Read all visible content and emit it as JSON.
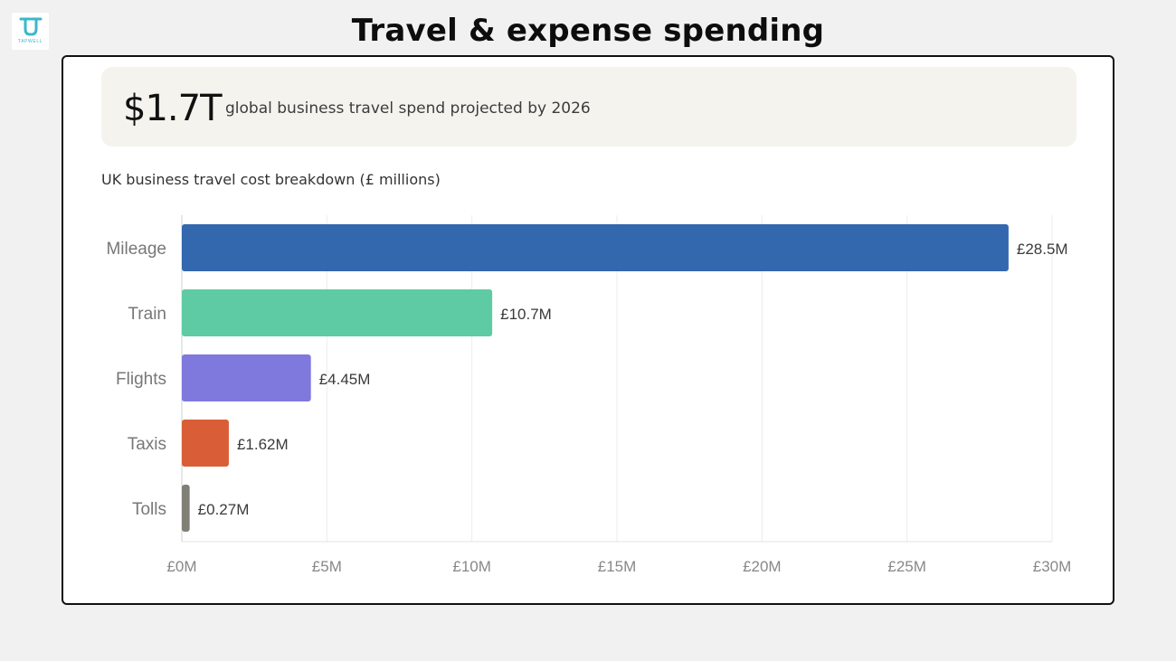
{
  "logo": {
    "word": "TAPWELL",
    "color": "#3bb7c9"
  },
  "slide_title": "Travel & expense spending",
  "stat": {
    "value": "$1.7T",
    "text": "global business travel spend projected by 2026"
  },
  "chart_subtitle": "UK business travel cost breakdown (£ millions)",
  "chart_data": {
    "type": "bar",
    "orientation": "horizontal",
    "categories": [
      "Mileage",
      "Train",
      "Flights",
      "Taxis",
      "Tolls"
    ],
    "values": [
      28.5,
      10.7,
      4.45,
      1.62,
      0.27
    ],
    "value_labels": [
      "£28.5M",
      "£10.7M",
      "£4.45M",
      "£1.62M",
      "£0.27M"
    ],
    "colors": [
      "#3367ae",
      "#5ecba5",
      "#7f79de",
      "#d95e37",
      "#808077"
    ],
    "xlim": [
      0,
      30
    ],
    "x_ticks": [
      0,
      5,
      10,
      15,
      20,
      25,
      30
    ],
    "x_tick_labels": [
      "£0M",
      "£5M",
      "£10M",
      "£15M",
      "£20M",
      "£25M",
      "£30M"
    ],
    "grid": true,
    "legend": "none"
  }
}
